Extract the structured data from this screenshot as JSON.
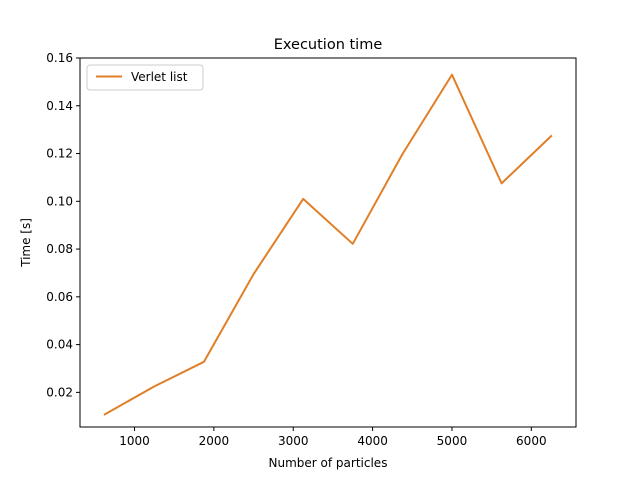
{
  "chart_data": {
    "type": "line",
    "title": "Execution time",
    "xlabel": "Number of particles",
    "ylabel": "Time [s]",
    "xlim": [
      313,
      6563
    ],
    "ylim": [
      0.0055,
      0.16
    ],
    "xticks": [
      1000,
      2000,
      3000,
      4000,
      5000,
      6000
    ],
    "xtick_labels": [
      "1000",
      "2000",
      "3000",
      "4000",
      "5000",
      "6000"
    ],
    "yticks": [
      0.02,
      0.04,
      0.06,
      0.08,
      0.1,
      0.12,
      0.14,
      0.16
    ],
    "ytick_labels": [
      "0.02",
      "0.04",
      "0.06",
      "0.08",
      "0.10",
      "0.12",
      "0.14",
      "0.16"
    ],
    "grid": false,
    "legend_position": "top-left",
    "series": [
      {
        "name": "Verlet list",
        "color": "#e07f27",
        "x": [
          625,
          1250,
          1875,
          2500,
          3125,
          3750,
          4375,
          5000,
          5625,
          6250
        ],
        "y": [
          0.0108,
          0.0225,
          0.0328,
          0.0695,
          0.101,
          0.0822,
          0.1197,
          0.153,
          0.1075,
          0.1273
        ]
      }
    ]
  }
}
